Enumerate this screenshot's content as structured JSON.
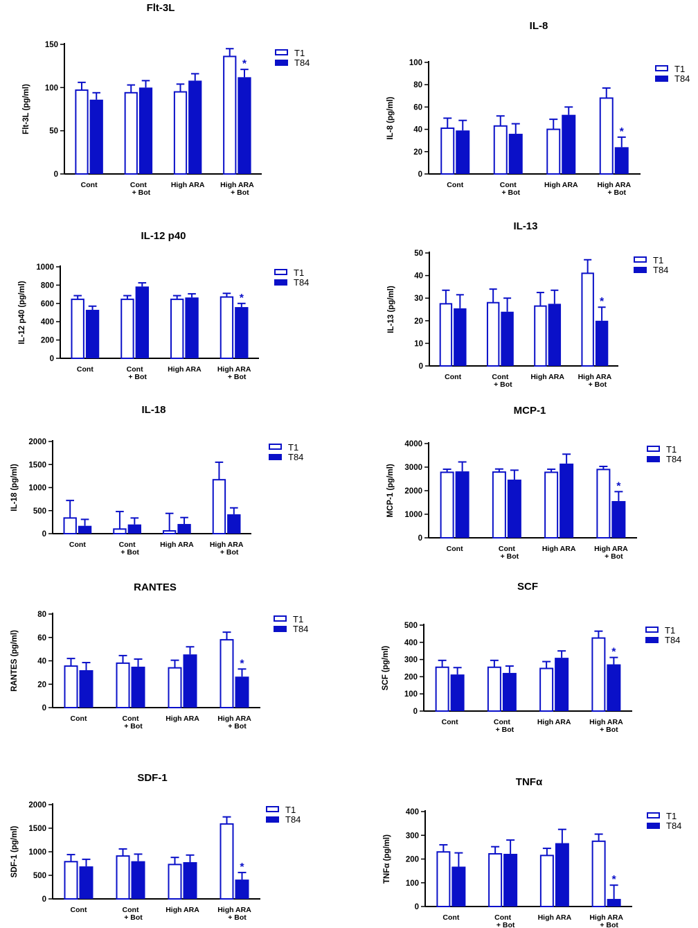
{
  "colors": {
    "accent": "#0a10c8",
    "axis": "#000000",
    "background": "#ffffff"
  },
  "legend": {
    "t1_label": "T1",
    "t84_label": "T84"
  },
  "significance_marker": "*",
  "chart_data": [
    {
      "type": "bar",
      "title": "Flt-3L",
      "ylabel": "Flt-3L (pg/ml)",
      "xlabel": "",
      "ylim": [
        0,
        150
      ],
      "yticks": [
        0,
        50,
        100,
        150
      ],
      "categories": [
        [
          "Cont"
        ],
        [
          "Cont",
          "+ Bot"
        ],
        [
          "High ARA"
        ],
        [
          "High ARA",
          "+ Bot"
        ]
      ],
      "series": [
        {
          "name": "T1",
          "style": "open",
          "values": [
            97,
            94,
            95,
            136
          ],
          "errors": [
            9,
            9,
            9,
            9
          ]
        },
        {
          "name": "T84",
          "style": "filled",
          "values": [
            86,
            100,
            108,
            112
          ],
          "errors": [
            8,
            8,
            8,
            9
          ]
        }
      ],
      "significant": [
        false,
        false,
        false,
        true
      ]
    },
    {
      "type": "bar",
      "title": "IL-8",
      "ylabel": "IL-8 (pg/ml)",
      "xlabel": "",
      "ylim": [
        0,
        100
      ],
      "yticks": [
        0,
        20,
        40,
        60,
        80,
        100
      ],
      "categories": [
        [
          "Cont"
        ],
        [
          "Cont",
          "+ Bot"
        ],
        [
          "High ARA"
        ],
        [
          "High ARA",
          "+ Bot"
        ]
      ],
      "series": [
        {
          "name": "T1",
          "style": "open",
          "values": [
            41,
            43,
            40,
            68
          ],
          "errors": [
            9,
            9,
            9,
            9
          ]
        },
        {
          "name": "T84",
          "style": "filled",
          "values": [
            39,
            36,
            53,
            24
          ],
          "errors": [
            9,
            9,
            7,
            9
          ]
        }
      ],
      "significant": [
        false,
        false,
        false,
        true
      ]
    },
    {
      "type": "bar",
      "title": "IL-12 p40",
      "ylabel": "IL-12 p40 (pg/ml)",
      "xlabel": "",
      "ylim": [
        0,
        1000
      ],
      "yticks": [
        0,
        200,
        400,
        600,
        800,
        1000
      ],
      "categories": [
        [
          "Cont"
        ],
        [
          "Cont",
          "+ Bot"
        ],
        [
          "High ARA"
        ],
        [
          "High ARA",
          "+ Bot"
        ]
      ],
      "series": [
        {
          "name": "T1",
          "style": "open",
          "values": [
            645,
            645,
            645,
            670
          ],
          "errors": [
            40,
            40,
            40,
            40
          ]
        },
        {
          "name": "T84",
          "style": "filled",
          "values": [
            530,
            785,
            665,
            560
          ],
          "errors": [
            40,
            40,
            40,
            40
          ]
        }
      ],
      "significant": [
        false,
        false,
        false,
        true
      ]
    },
    {
      "type": "bar",
      "title": "IL-13",
      "ylabel": "IL-13 (pg/ml)",
      "xlabel": "",
      "ylim": [
        0,
        50
      ],
      "yticks": [
        0,
        10,
        20,
        30,
        40,
        50
      ],
      "categories": [
        [
          "Cont"
        ],
        [
          "Cont",
          "+ Bot"
        ],
        [
          "High ARA"
        ],
        [
          "High ARA",
          "+ Bot"
        ]
      ],
      "series": [
        {
          "name": "T1",
          "style": "open",
          "values": [
            27.5,
            28,
            26.5,
            41
          ],
          "errors": [
            6,
            6,
            6,
            6
          ]
        },
        {
          "name": "T84",
          "style": "filled",
          "values": [
            25.5,
            24,
            27.5,
            20
          ],
          "errors": [
            6,
            6,
            6,
            6
          ]
        }
      ],
      "significant": [
        false,
        false,
        false,
        true
      ]
    },
    {
      "type": "bar",
      "title": "IL-18",
      "ylabel": "IL-18 (pg/ml)",
      "xlabel": "",
      "ylim": [
        0,
        2000
      ],
      "yticks": [
        0,
        500,
        1000,
        1500,
        2000
      ],
      "categories": [
        [
          "Cont"
        ],
        [
          "Cont",
          "+ Bot"
        ],
        [
          "High ARA"
        ],
        [
          "High ARA",
          "+ Bot"
        ]
      ],
      "series": [
        {
          "name": "T1",
          "style": "open",
          "values": [
            340,
            100,
            60,
            1170
          ],
          "errors": [
            380,
            380,
            380,
            380
          ]
        },
        {
          "name": "T84",
          "style": "filled",
          "values": [
            170,
            200,
            210,
            420
          ],
          "errors": [
            140,
            140,
            140,
            140
          ]
        }
      ],
      "significant": [
        false,
        false,
        false,
        false
      ]
    },
    {
      "type": "bar",
      "title": "MCP-1",
      "ylabel": "MCP-1 (pg/ml)",
      "xlabel": "",
      "ylim": [
        0,
        4000
      ],
      "yticks": [
        0,
        1000,
        2000,
        3000,
        4000
      ],
      "categories": [
        [
          "Cont"
        ],
        [
          "Cont",
          "+ Bot"
        ],
        [
          "High ARA"
        ],
        [
          "High ARA",
          "+ Bot"
        ]
      ],
      "series": [
        {
          "name": "T1",
          "style": "open",
          "values": [
            2780,
            2790,
            2780,
            2900
          ],
          "errors": [
            130,
            130,
            130,
            130
          ]
        },
        {
          "name": "T84",
          "style": "filled",
          "values": [
            2820,
            2470,
            3150,
            1560
          ],
          "errors": [
            400,
            400,
            400,
            400
          ]
        }
      ],
      "significant": [
        false,
        false,
        false,
        true
      ]
    },
    {
      "type": "bar",
      "title": "RANTES",
      "ylabel": "RANTES (pg/ml)",
      "xlabel": "",
      "ylim": [
        0,
        80
      ],
      "yticks": [
        0,
        20,
        40,
        60,
        80
      ],
      "categories": [
        [
          "Cont"
        ],
        [
          "Cont",
          "+ Bot"
        ],
        [
          "High ARA"
        ],
        [
          "High ARA",
          "+ Bot"
        ]
      ],
      "series": [
        {
          "name": "T1",
          "style": "open",
          "values": [
            35.5,
            38,
            34,
            58
          ],
          "errors": [
            6.5,
            6.5,
            6.5,
            6.5
          ]
        },
        {
          "name": "T84",
          "style": "filled",
          "values": [
            32,
            35,
            45.5,
            26.5
          ],
          "errors": [
            6.5,
            6.5,
            6.5,
            6.5
          ]
        }
      ],
      "significant": [
        false,
        false,
        false,
        true
      ]
    },
    {
      "type": "bar",
      "title": "SCF",
      "ylabel": "SCF (pg/ml)",
      "xlabel": "",
      "ylim": [
        0,
        500
      ],
      "yticks": [
        0,
        100,
        200,
        300,
        400,
        500
      ],
      "categories": [
        [
          "Cont"
        ],
        [
          "Cont",
          "+ Bot"
        ],
        [
          "High ARA"
        ],
        [
          "High ARA",
          "+ Bot"
        ]
      ],
      "series": [
        {
          "name": "T1",
          "style": "open",
          "values": [
            255,
            255,
            248,
            425
          ],
          "errors": [
            40,
            40,
            40,
            40
          ]
        },
        {
          "name": "T84",
          "style": "filled",
          "values": [
            213,
            222,
            310,
            272
          ],
          "errors": [
            40,
            40,
            40,
            40
          ]
        }
      ],
      "significant": [
        false,
        false,
        false,
        true
      ]
    },
    {
      "type": "bar",
      "title": "SDF-1",
      "ylabel": "SDF-1 (pg/ml)",
      "xlabel": "",
      "ylim": [
        0,
        2000
      ],
      "yticks": [
        0,
        500,
        1000,
        1500,
        2000
      ],
      "categories": [
        [
          "Cont"
        ],
        [
          "Cont",
          "+ Bot"
        ],
        [
          "High ARA"
        ],
        [
          "High ARA",
          "+ Bot"
        ]
      ],
      "series": [
        {
          "name": "T1",
          "style": "open",
          "values": [
            790,
            910,
            730,
            1590
          ],
          "errors": [
            150,
            150,
            150,
            150
          ]
        },
        {
          "name": "T84",
          "style": "filled",
          "values": [
            690,
            800,
            780,
            410
          ],
          "errors": [
            150,
            150,
            150,
            150
          ]
        }
      ],
      "significant": [
        false,
        false,
        false,
        true
      ]
    },
    {
      "type": "bar",
      "title": "TNFα",
      "ylabel": "TNFα (pg/ml)",
      "xlabel": "",
      "ylim": [
        0,
        400
      ],
      "yticks": [
        0,
        100,
        200,
        300,
        400
      ],
      "categories": [
        [
          "Cont"
        ],
        [
          "Cont",
          "+ Bot"
        ],
        [
          "High ARA"
        ],
        [
          "High ARA",
          "+ Bot"
        ]
      ],
      "series": [
        {
          "name": "T1",
          "style": "open",
          "values": [
            230,
            222,
            215,
            275
          ],
          "errors": [
            30,
            30,
            30,
            30
          ]
        },
        {
          "name": "T84",
          "style": "filled",
          "values": [
            168,
            222,
            267,
            32
          ],
          "errors": [
            58,
            58,
            58,
            58
          ]
        }
      ],
      "significant": [
        false,
        false,
        false,
        true
      ]
    }
  ]
}
